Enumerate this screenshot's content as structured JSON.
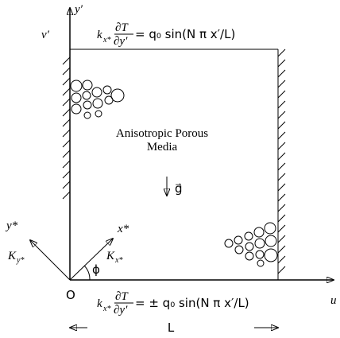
{
  "axes": {
    "y_prime": "y′",
    "v_prime": "v′",
    "u": "u",
    "origin": "O",
    "x_star": "x*",
    "y_star": "y*",
    "K_x": "K",
    "K_x_sub": "x*",
    "K_y": "K",
    "K_y_sub": "y*",
    "phi": "ϕ"
  },
  "top_condition": {
    "k": "k",
    "k_sub": "x*",
    "num": "∂T",
    "den": "∂y′",
    "rhs": "= q₀ sin(N π x′/L)"
  },
  "bottom_condition": {
    "k": "k",
    "k_sub": "x*",
    "num": "∂T",
    "den": "∂y′",
    "rhs": "= ± q₀ sin(N π x′/L)"
  },
  "medium": {
    "line1": "Anisotropic Porous",
    "line2": "Media"
  },
  "gravity": "g⃗",
  "length": "L"
}
